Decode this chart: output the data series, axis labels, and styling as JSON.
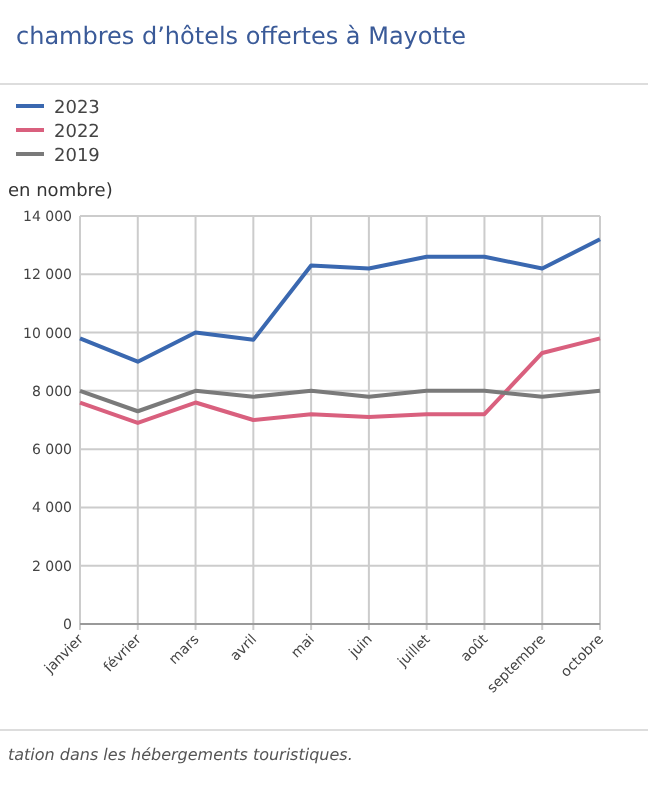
{
  "chart_data": {
    "type": "line",
    "title": "chambres d’hôtels offertes à Mayotte",
    "ylabel": "en nombre)",
    "annotations": [
      "tation dans les hébergements touristiques."
    ],
    "categories": [
      "janvier",
      "février",
      "mars",
      "avril",
      "mai",
      "juin",
      "juillet",
      "août",
      "septembre",
      "octobre"
    ],
    "series": [
      {
        "name": "2023",
        "color": "#3a68b0",
        "values": [
          9800,
          9000,
          10000,
          9750,
          12300,
          12200,
          12600,
          12600,
          12200,
          13200
        ]
      },
      {
        "name": "2022",
        "color": "#d9607e",
        "values": [
          7600,
          6900,
          7600,
          7000,
          7200,
          7100,
          7200,
          7200,
          9300,
          9800
        ]
      },
      {
        "name": "2019",
        "color": "#7a7a7a",
        "values": [
          8000,
          7300,
          8000,
          7800,
          8000,
          7800,
          8000,
          8000,
          7800,
          8000
        ]
      }
    ],
    "ylim": [
      0,
      14000
    ],
    "yticks": [
      0,
      {
        "value": 2000,
        "label": "2 000"
      },
      {
        "value": 4000,
        "label": "4 000"
      },
      {
        "value": 6000,
        "label": "6 000"
      },
      {
        "value": 8000,
        "label": "8 000"
      },
      {
        "value": 10000,
        "label": "10 000"
      },
      {
        "value": 12000,
        "label": "12 000"
      },
      {
        "value": 14000,
        "label": "14 000"
      }
    ],
    "grid": true,
    "legend": "top left",
    "marker": "none",
    "line_style": "solid"
  }
}
